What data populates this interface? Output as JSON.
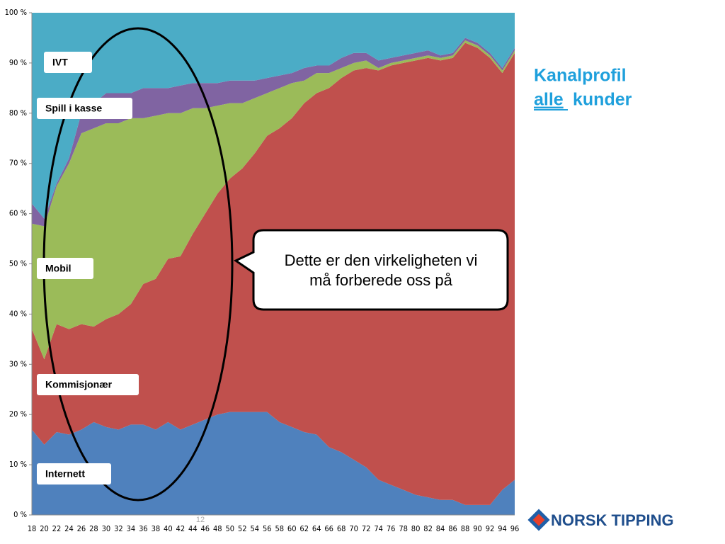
{
  "chart_data": {
    "type": "stacked_area",
    "title": "Kanalprofil",
    "subtitle": [
      "alle",
      "kunder"
    ],
    "annotation": [
      "Dette er den virkeligheten vi",
      "må forberede oss på"
    ],
    "categories": [
      "18",
      "20",
      "22",
      "24",
      "26",
      "28",
      "30",
      "32",
      "34",
      "36",
      "38",
      "40",
      "42",
      "44",
      "46",
      "48",
      "50",
      "52",
      "54",
      "56",
      "58",
      "60",
      "62",
      "64",
      "66",
      "68",
      "70",
      "72",
      "74",
      "76",
      "78",
      "80",
      "82",
      "84",
      "86",
      "88",
      "90",
      "92",
      "94",
      "96"
    ],
    "series": [
      {
        "name": "Internett",
        "color": "#4f81bd",
        "values": [
          17,
          14,
          16.5,
          16,
          17,
          18.5,
          17.5,
          17,
          18,
          18,
          17,
          18.5,
          17,
          18,
          19,
          20,
          20.5,
          20.5,
          20.5,
          20.5,
          18.5,
          17.5,
          16.5,
          16,
          13.5,
          12.5,
          11,
          9.5,
          7,
          6,
          5,
          4,
          3.5,
          3,
          3,
          2,
          2,
          2,
          5,
          7
        ]
      },
      {
        "name": "Kommisjonær",
        "color": "#c0504d",
        "values": [
          20,
          17,
          21.5,
          21,
          21,
          19,
          21.5,
          23,
          24,
          28,
          30,
          32.5,
          34.5,
          38,
          41,
          44,
          46.5,
          48.5,
          51.5,
          55,
          58.5,
          61.5,
          65.5,
          68,
          71.5,
          74.5,
          77.5,
          79.5,
          81.5,
          83.5,
          85,
          86.5,
          87.5,
          87.5,
          88,
          92,
          91,
          89,
          83,
          85
        ]
      },
      {
        "name": "Mobil",
        "color": "#9bbb59",
        "values": [
          21,
          26.5,
          27.5,
          33,
          38,
          39.5,
          39,
          38,
          37,
          33,
          32.5,
          29,
          28.5,
          25,
          21,
          17.5,
          15,
          13,
          11,
          8.5,
          8,
          7,
          4.5,
          4,
          3,
          2,
          1.5,
          1.5,
          0.5,
          0.5,
          0.5,
          0.5,
          0.5,
          0.5,
          0.5,
          0.5,
          0.5,
          0.5,
          0.5,
          0.5
        ]
      },
      {
        "name": "Spill i kasse",
        "color": "#8064a2",
        "values": [
          4,
          1.5,
          0.5,
          1,
          4,
          5,
          6,
          6,
          5,
          6,
          5.5,
          5,
          5.5,
          5,
          5,
          4.5,
          4.5,
          4.5,
          3.5,
          3,
          2.5,
          2,
          2.5,
          1.5,
          1.5,
          2,
          2,
          1.5,
          1.5,
          1,
          1,
          1,
          1,
          0.5,
          0.5,
          0.5,
          0.5,
          0.5,
          0.5,
          0.5
        ]
      },
      {
        "name": "IVT",
        "color": "#4bacc6",
        "values": [
          38,
          41,
          34,
          29,
          20,
          18,
          16,
          16,
          16,
          15,
          15,
          15,
          14.5,
          14,
          14,
          14,
          13.5,
          13.5,
          13.5,
          13,
          12.5,
          12,
          11,
          10.5,
          10.5,
          9,
          8,
          8,
          9.5,
          9,
          8.5,
          8,
          7.5,
          8.5,
          8,
          5,
          6,
          8,
          11,
          7
        ]
      }
    ],
    "ylim": [
      0,
      100
    ],
    "yticks": [
      {
        "value": 0,
        "label": "0 %"
      },
      {
        "value": 10,
        "label": "10 %"
      },
      {
        "value": 20,
        "label": "20 %"
      },
      {
        "value": 30,
        "label": "30 %"
      },
      {
        "value": 40,
        "label": "40 %"
      },
      {
        "value": 50,
        "label": "50 %"
      },
      {
        "value": 60,
        "label": "60 %"
      },
      {
        "value": 70,
        "label": "70 %"
      },
      {
        "value": 80,
        "label": "80 %"
      },
      {
        "value": 90,
        "label": "90 %"
      },
      {
        "value": 100,
        "label": "100 %"
      }
    ]
  },
  "slide": {
    "page_number": "12",
    "logo": "NORSK TIPPING"
  }
}
